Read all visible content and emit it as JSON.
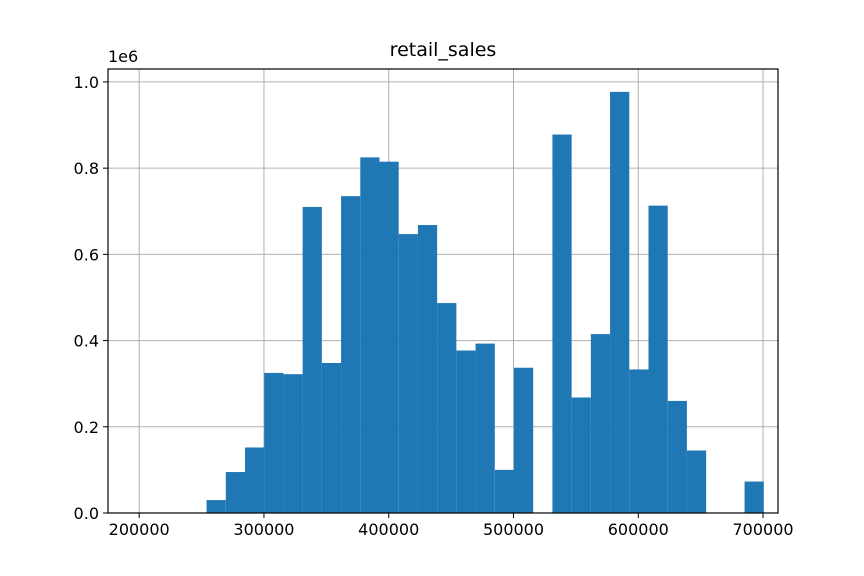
{
  "chart_data": {
    "type": "bar",
    "title": "retail_sales",
    "xlabel": "",
    "ylabel": "",
    "y_offset_label": "1e6",
    "xlim": [
      200000,
      700000
    ],
    "ylim": [
      0,
      1030000
    ],
    "grid": true,
    "bar_color": "#1f77b4",
    "x_ticks": [
      200000,
      300000,
      400000,
      500000,
      600000,
      700000
    ],
    "x_tick_labels": [
      "200000",
      "300000",
      "400000",
      "500000",
      "600000",
      "700000"
    ],
    "y_ticks": [
      0,
      200000,
      400000,
      600000,
      800000,
      1000000
    ],
    "y_tick_labels": [
      "0.0",
      "0.2",
      "0.4",
      "0.6",
      "0.8",
      "1.0"
    ],
    "bin_edges": [
      254000,
      269400,
      284800,
      300200,
      315600,
      331000,
      346400,
      361800,
      377200,
      392600,
      408000,
      423400,
      438800,
      454200,
      469600,
      485000,
      500400,
      515800,
      531200,
      546600,
      562000,
      577400,
      592800,
      608200,
      623600,
      639000,
      654400,
      669800,
      685200,
      700600
    ],
    "values": [
      30000,
      95000,
      152000,
      325000,
      322000,
      710000,
      348000,
      735000,
      825000,
      815000,
      647000,
      668000,
      487000,
      377000,
      393000,
      100000,
      337000,
      0,
      878000,
      268000,
      415000,
      977000,
      333000,
      713000,
      260000,
      145000,
      0,
      0,
      73000
    ]
  }
}
